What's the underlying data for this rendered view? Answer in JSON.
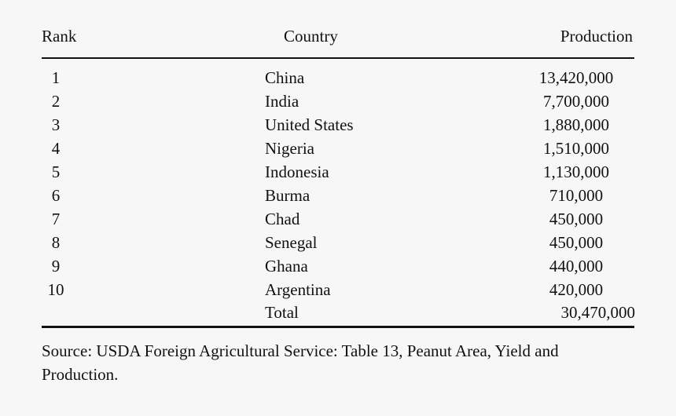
{
  "table": {
    "headers": {
      "rank": "Rank",
      "country": "Country",
      "production": "Production"
    },
    "rows": [
      {
        "rank": "1",
        "country": "China",
        "production": "13,420,000"
      },
      {
        "rank": "2",
        "country": "India",
        "production": "7,700,000"
      },
      {
        "rank": "3",
        "country": "United States",
        "production": "1,880,000"
      },
      {
        "rank": "4",
        "country": "Nigeria",
        "production": "1,510,000"
      },
      {
        "rank": "5",
        "country": "Indonesia",
        "production": "1,130,000"
      },
      {
        "rank": "6",
        "country": "Burma",
        "production": "710,000"
      },
      {
        "rank": "7",
        "country": "Chad",
        "production": "450,000"
      },
      {
        "rank": "8",
        "country": "Senegal",
        "production": "450,000"
      },
      {
        "rank": "9",
        "country": "Ghana",
        "production": "440,000"
      },
      {
        "rank": "10",
        "country": "Argentina",
        "production": "420,000"
      }
    ],
    "total": {
      "label": "Total",
      "production": "30,470,000"
    }
  },
  "source": "Source: USDA Foreign Agricultural Service: Table 13, Peanut Area, Yield and Production."
}
